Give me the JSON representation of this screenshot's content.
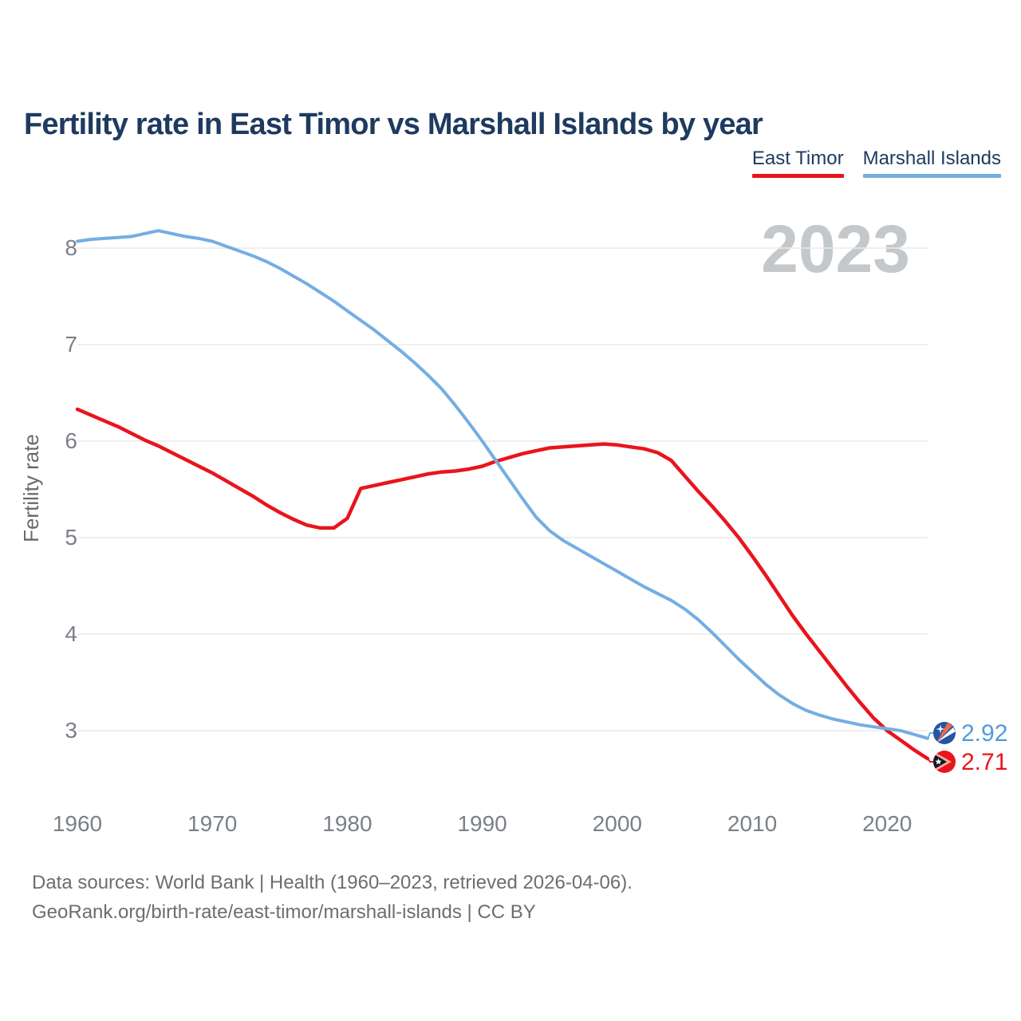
{
  "header": {
    "title": "Fertility rate in East Timor vs Marshall Islands by year"
  },
  "legend": {
    "items": [
      {
        "label": "East Timor",
        "color": "#e9141d"
      },
      {
        "label": "Marshall Islands",
        "color": "#74ade2"
      }
    ]
  },
  "footer": {
    "line1": "Data sources: World Bank | Health (1960–2023, retrieved 2026-04-06).",
    "line2": "GeoRank.org/birth-rate/east-timor/marshall-islands | CC BY"
  },
  "chart_data": {
    "type": "line",
    "title": "Fertility rate in East Timor vs Marshall Islands by year",
    "xlabel": "",
    "ylabel": "Fertility rate",
    "watermark": "2023",
    "x_start": 1960,
    "x_end": 2023,
    "xticks": [
      1960,
      1970,
      1980,
      1990,
      2000,
      2010,
      2020
    ],
    "yticks": [
      8,
      7,
      6,
      5,
      4,
      3
    ],
    "ylim": [
      2.55,
      8.4
    ],
    "grid": "horizontal",
    "legend_position": "top-right",
    "series": [
      {
        "name": "East Timor",
        "color": "#e9141d",
        "label_color": "#e9141d",
        "end_label": "2.71",
        "flag_icon": "east-timor-flag-icon",
        "values": [
          6.33,
          6.27,
          6.21,
          6.15,
          6.08,
          6.01,
          5.95,
          5.88,
          5.81,
          5.74,
          5.67,
          5.59,
          5.51,
          5.43,
          5.34,
          5.26,
          5.19,
          5.13,
          5.1,
          5.1,
          5.2,
          5.51,
          5.54,
          5.57,
          5.6,
          5.63,
          5.66,
          5.68,
          5.69,
          5.71,
          5.74,
          5.79,
          5.83,
          5.87,
          5.9,
          5.93,
          5.94,
          5.95,
          5.96,
          5.97,
          5.96,
          5.94,
          5.92,
          5.88,
          5.8,
          5.64,
          5.48,
          5.33,
          5.17,
          5.0,
          4.81,
          4.61,
          4.4,
          4.19,
          4.0,
          3.82,
          3.64,
          3.46,
          3.29,
          3.13,
          3.0,
          2.9,
          2.8,
          2.71
        ]
      },
      {
        "name": "Marshall Islands",
        "color": "#74ade2",
        "label_color": "#4f9bdb",
        "end_label": "2.92",
        "flag_icon": "marshall-islands-flag-icon",
        "values": [
          8.07,
          8.09,
          8.1,
          8.11,
          8.12,
          8.15,
          8.18,
          8.15,
          8.12,
          8.1,
          8.07,
          8.02,
          7.97,
          7.92,
          7.86,
          7.79,
          7.71,
          7.63,
          7.54,
          7.45,
          7.35,
          7.25,
          7.15,
          7.04,
          6.93,
          6.81,
          6.68,
          6.54,
          6.37,
          6.19,
          6.0,
          5.8,
          5.6,
          5.4,
          5.21,
          5.07,
          4.97,
          4.89,
          4.81,
          4.73,
          4.65,
          4.57,
          4.49,
          4.42,
          4.35,
          4.26,
          4.15,
          4.02,
          3.88,
          3.74,
          3.61,
          3.48,
          3.37,
          3.28,
          3.21,
          3.16,
          3.12,
          3.09,
          3.06,
          3.04,
          3.02,
          3.0,
          2.96,
          2.92
        ]
      }
    ],
    "colors": {
      "title": "#1e3a5f",
      "grid": "#eaeaea",
      "tick_label": "#7b8087",
      "axis_label": "#686868",
      "watermark": "#c4c8cb",
      "footer": "#6d6d6d",
      "marshall_flag_blue": "#2355a4",
      "marshall_flag_orange": "#f0694a",
      "east_timor_flag_red": "#e9141d",
      "east_timor_flag_black": "#151a24",
      "east_timor_flag_salmon": "#f5a898"
    }
  }
}
